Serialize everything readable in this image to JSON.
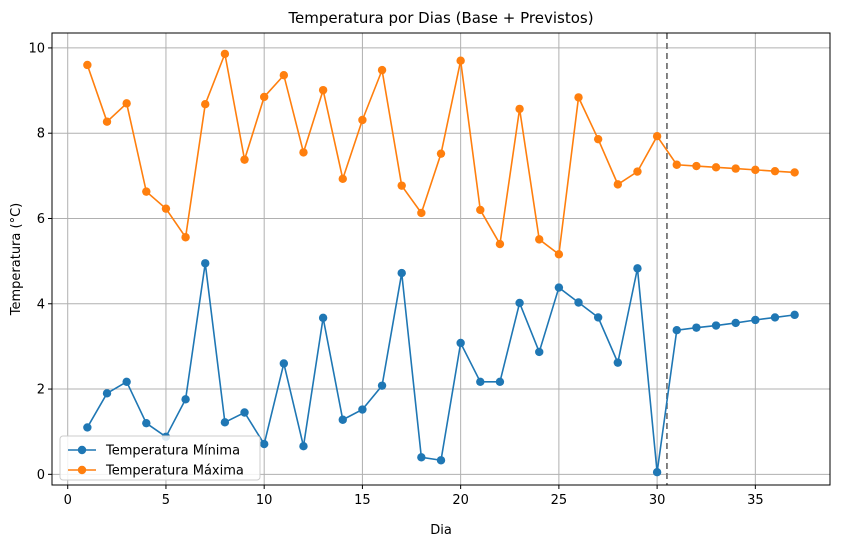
{
  "chart_data": {
    "type": "line",
    "title": "Temperatura por Dias (Base + Previstos)",
    "xlabel": "Dia",
    "ylabel": "Temperatura (°C)",
    "xlim": [
      -0.8,
      38.8
    ],
    "ylim": [
      -0.25,
      10.35
    ],
    "xticks": [
      0,
      5,
      10,
      15,
      20,
      25,
      30,
      35
    ],
    "yticks": [
      0,
      2,
      4,
      6,
      8,
      10
    ],
    "grid": true,
    "legend_position": "lower-left",
    "forecast_divider_x": 30.5,
    "x": [
      1,
      2,
      3,
      4,
      5,
      6,
      7,
      8,
      9,
      10,
      11,
      12,
      13,
      14,
      15,
      16,
      17,
      18,
      19,
      20,
      21,
      22,
      23,
      24,
      25,
      26,
      27,
      28,
      29,
      30,
      31,
      32,
      33,
      34,
      35,
      36,
      37
    ],
    "series": [
      {
        "name": "Temperatura Mínima",
        "color": "#1f77b4",
        "values": [
          1.1,
          1.9,
          2.17,
          1.2,
          0.88,
          1.76,
          4.95,
          1.22,
          1.45,
          0.71,
          2.6,
          0.66,
          3.67,
          1.28,
          1.52,
          2.08,
          4.72,
          0.4,
          0.33,
          3.08,
          2.17,
          2.17,
          4.02,
          2.87,
          4.38,
          4.03,
          3.68,
          2.62,
          4.83,
          0.05,
          3.38,
          3.44,
          3.49,
          3.55,
          3.62,
          3.68,
          3.74
        ]
      },
      {
        "name": "Temperatura Máxima",
        "color": "#ff7f0e",
        "values": [
          9.6,
          8.27,
          8.7,
          6.63,
          6.23,
          5.56,
          8.68,
          9.86,
          7.38,
          8.85,
          9.36,
          7.55,
          9.01,
          6.93,
          8.31,
          9.48,
          6.77,
          6.13,
          7.52,
          9.7,
          6.2,
          5.4,
          8.57,
          5.51,
          5.16,
          8.84,
          7.86,
          6.8,
          7.1,
          7.93,
          7.26,
          7.23,
          7.2,
          7.17,
          7.14,
          7.11,
          7.08
        ]
      }
    ]
  }
}
